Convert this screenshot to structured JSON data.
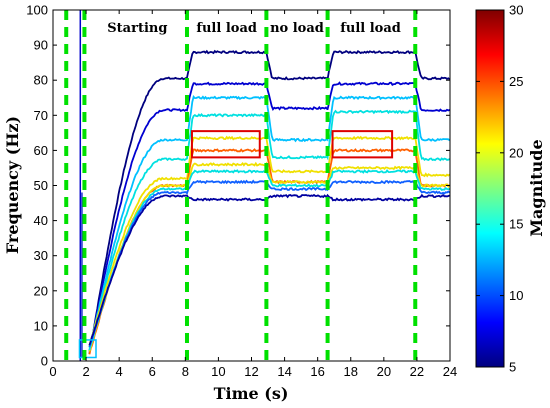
{
  "chart_data": {
    "type": "line",
    "title": "",
    "xlabel": "Time (s)",
    "ylabel": "Frequency (Hz)",
    "xlim": [
      0,
      24
    ],
    "ylim": [
      0,
      100
    ],
    "xticks": [
      "0",
      "2",
      "4",
      "6",
      "8",
      "10",
      "12",
      "14",
      "16",
      "18",
      "20",
      "22",
      "24"
    ],
    "yticks": [
      "0",
      "10",
      "20",
      "30",
      "40",
      "50",
      "60",
      "70",
      "80",
      "90",
      "100"
    ],
    "grid": false,
    "plot_style": "contour",
    "colorbar": {
      "label": "Magnitude",
      "range": [
        5,
        30
      ],
      "ticks": [
        "5",
        "10",
        "15",
        "20",
        "25",
        "30"
      ],
      "colormap": "jet",
      "colormap_colors": [
        "#00007f",
        "#0000ff",
        "#007fff",
        "#00ffff",
        "#7fff7f",
        "#ffff00",
        "#ff7f00",
        "#ff0000",
        "#7f0000"
      ]
    },
    "boundaries": {
      "color": "#00e000",
      "x": [
        0.8,
        1.9,
        8.1,
        12.9,
        16.6,
        21.9
      ]
    },
    "annotations": [
      {
        "text": "Starting",
        "x": 5.1
      },
      {
        "text": "full load",
        "x": 10.5
      },
      {
        "text": "no load",
        "x": 14.75
      },
      {
        "text": "full load",
        "x": 19.2
      }
    ],
    "series": [
      {
        "level": 5,
        "color": "#00007f",
        "levels_hz": [
          80.5,
          88,
          80.5,
          88,
          80.5
        ]
      },
      {
        "level": 8,
        "color": "#0000d0",
        "levels_hz": [
          71.5,
          79,
          72,
          79,
          71.5
        ]
      },
      {
        "level": 12,
        "color": "#00c0ff",
        "levels_hz": [
          63,
          75,
          63,
          75,
          63
        ]
      },
      {
        "level": 15,
        "color": "#00e0e0",
        "levels_hz": [
          57.5,
          70,
          58,
          71,
          57.5
        ]
      },
      {
        "level": 22,
        "color": "#f0e000",
        "levels_hz": [
          52,
          63.5,
          54,
          63.5,
          53
        ]
      },
      {
        "level": 27,
        "color": "#ff6000",
        "levels_hz": [
          50,
          60,
          51,
          60,
          50
        ]
      },
      {
        "level": 22,
        "color": "#f0e000",
        "levels_hz": [
          50,
          56,
          51,
          55,
          50
        ]
      },
      {
        "level": 15,
        "color": "#00e0e0",
        "levels_hz": [
          49,
          54,
          50,
          54,
          49
        ]
      },
      {
        "level": 10,
        "color": "#1060ff",
        "levels_hz": [
          48,
          51,
          49,
          51,
          48
        ]
      },
      {
        "level": 6,
        "color": "#0000a0",
        "levels_hz": [
          47,
          46,
          47,
          46,
          47
        ]
      },
      {
        "level": 30,
        "color": "#dd0000",
        "levels_hz": [
          50,
          65.5,
          50,
          65.5,
          50
        ]
      }
    ]
  }
}
